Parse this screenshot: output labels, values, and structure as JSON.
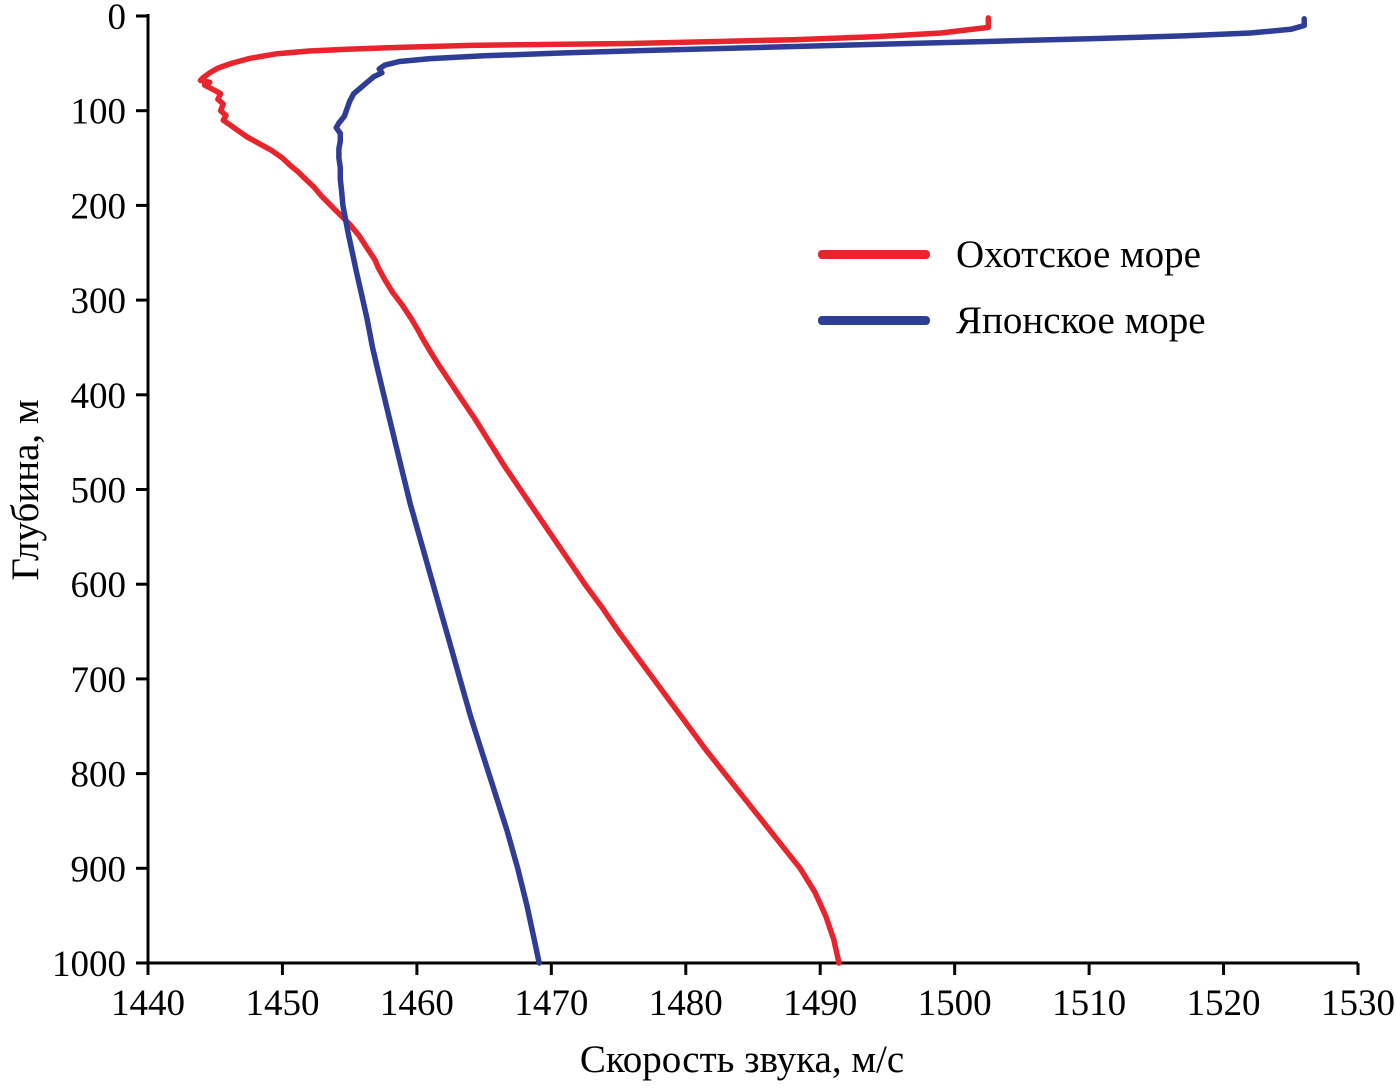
{
  "chart_data": {
    "type": "line",
    "title": "",
    "xlabel": "Скорость звука, м/с",
    "ylabel": "Глубина, м",
    "xlim": [
      1440,
      1530
    ],
    "ylim": [
      0,
      1000
    ],
    "y_inverted": true,
    "grid": false,
    "x_ticks": [
      1440,
      1450,
      1460,
      1470,
      1480,
      1490,
      1500,
      1510,
      1520,
      1530
    ],
    "y_ticks": [
      0,
      100,
      200,
      300,
      400,
      500,
      600,
      700,
      800,
      900,
      1000
    ],
    "legend_position": "upper-right-inside",
    "series": [
      {
        "name": "Охотское море",
        "color": "#e8242c",
        "x_units": "m/s",
        "y_units": "m depth",
        "points": [
          [
            1502.5,
            2
          ],
          [
            1502.5,
            12
          ],
          [
            1499,
            18
          ],
          [
            1494,
            22
          ],
          [
            1488,
            25
          ],
          [
            1482,
            27
          ],
          [
            1476,
            29
          ],
          [
            1470,
            30
          ],
          [
            1464,
            31
          ],
          [
            1459,
            33
          ],
          [
            1455,
            35
          ],
          [
            1452,
            37
          ],
          [
            1449.5,
            40
          ],
          [
            1447.5,
            45
          ],
          [
            1446.2,
            50
          ],
          [
            1445.2,
            55
          ],
          [
            1444.6,
            60
          ],
          [
            1444.1,
            65
          ],
          [
            1443.9,
            68
          ],
          [
            1444.6,
            70
          ],
          [
            1444.2,
            73
          ],
          [
            1444.9,
            78
          ],
          [
            1445.4,
            82
          ],
          [
            1445.2,
            88
          ],
          [
            1445.6,
            93
          ],
          [
            1445.4,
            100
          ],
          [
            1445.8,
            105
          ],
          [
            1445.6,
            110
          ],
          [
            1446.1,
            115
          ],
          [
            1446.6,
            120
          ],
          [
            1447.4,
            128
          ],
          [
            1448.3,
            135
          ],
          [
            1449.2,
            142
          ],
          [
            1450.0,
            150
          ],
          [
            1450.6,
            158
          ],
          [
            1451.2,
            165
          ],
          [
            1451.7,
            172
          ],
          [
            1452.3,
            180
          ],
          [
            1452.9,
            190
          ],
          [
            1453.6,
            200
          ],
          [
            1454.3,
            210
          ],
          [
            1455.0,
            220
          ],
          [
            1455.7,
            232
          ],
          [
            1456.3,
            245
          ],
          [
            1456.9,
            258
          ],
          [
            1457.1,
            265
          ],
          [
            1457.6,
            278
          ],
          [
            1458.2,
            292
          ],
          [
            1458.9,
            305
          ],
          [
            1459.6,
            320
          ],
          [
            1460.1,
            332
          ],
          [
            1460.4,
            340
          ],
          [
            1460.9,
            352
          ],
          [
            1461.6,
            368
          ],
          [
            1462.4,
            385
          ],
          [
            1463.2,
            402
          ],
          [
            1464.3,
            425
          ],
          [
            1465.4,
            450
          ],
          [
            1466.5,
            475
          ],
          [
            1467.7,
            500
          ],
          [
            1468.9,
            525
          ],
          [
            1470.1,
            550
          ],
          [
            1471.3,
            575
          ],
          [
            1472.5,
            600
          ],
          [
            1473.8,
            625
          ],
          [
            1475.0,
            650
          ],
          [
            1476.3,
            675
          ],
          [
            1477.6,
            700
          ],
          [
            1478.9,
            725
          ],
          [
            1480.2,
            750
          ],
          [
            1481.5,
            775
          ],
          [
            1482.9,
            800
          ],
          [
            1484.3,
            825
          ],
          [
            1485.7,
            850
          ],
          [
            1487.1,
            875
          ],
          [
            1488.5,
            900
          ],
          [
            1489.6,
            925
          ],
          [
            1490.4,
            950
          ],
          [
            1491.0,
            975
          ],
          [
            1491.4,
            1000
          ]
        ]
      },
      {
        "name": "Японское море",
        "color": "#2e3d96",
        "x_units": "m/s",
        "y_units": "m depth",
        "points": [
          [
            1526,
            3
          ],
          [
            1526,
            10
          ],
          [
            1525,
            14
          ],
          [
            1522,
            18
          ],
          [
            1517,
            21
          ],
          [
            1510,
            24
          ],
          [
            1502,
            27
          ],
          [
            1494,
            30
          ],
          [
            1486,
            33
          ],
          [
            1478,
            36
          ],
          [
            1471,
            39
          ],
          [
            1465,
            42
          ],
          [
            1461,
            45
          ],
          [
            1458.7,
            48
          ],
          [
            1457.6,
            52
          ],
          [
            1457.2,
            56
          ],
          [
            1457.4,
            60
          ],
          [
            1456.8,
            64
          ],
          [
            1456.3,
            70
          ],
          [
            1455.8,
            76
          ],
          [
            1455.3,
            82
          ],
          [
            1455.0,
            90
          ],
          [
            1454.8,
            98
          ],
          [
            1454.6,
            106
          ],
          [
            1454.2,
            113
          ],
          [
            1454.0,
            118
          ],
          [
            1454.3,
            124
          ],
          [
            1454.3,
            132
          ],
          [
            1454.2,
            140
          ],
          [
            1454.2,
            150
          ],
          [
            1454.3,
            160
          ],
          [
            1454.3,
            172
          ],
          [
            1454.4,
            185
          ],
          [
            1454.5,
            200
          ],
          [
            1454.7,
            215
          ],
          [
            1454.9,
            230
          ],
          [
            1455.2,
            250
          ],
          [
            1455.5,
            270
          ],
          [
            1455.9,
            295
          ],
          [
            1456.3,
            320
          ],
          [
            1456.7,
            350
          ],
          [
            1457.2,
            380
          ],
          [
            1457.7,
            410
          ],
          [
            1458.3,
            445
          ],
          [
            1458.9,
            480
          ],
          [
            1459.5,
            515
          ],
          [
            1460.2,
            550
          ],
          [
            1460.9,
            585
          ],
          [
            1461.6,
            620
          ],
          [
            1462.4,
            660
          ],
          [
            1463.2,
            700
          ],
          [
            1464.0,
            740
          ],
          [
            1464.9,
            780
          ],
          [
            1465.8,
            820
          ],
          [
            1466.7,
            860
          ],
          [
            1467.5,
            900
          ],
          [
            1468.2,
            940
          ],
          [
            1468.8,
            980
          ],
          [
            1469.1,
            1000
          ]
        ]
      }
    ]
  }
}
